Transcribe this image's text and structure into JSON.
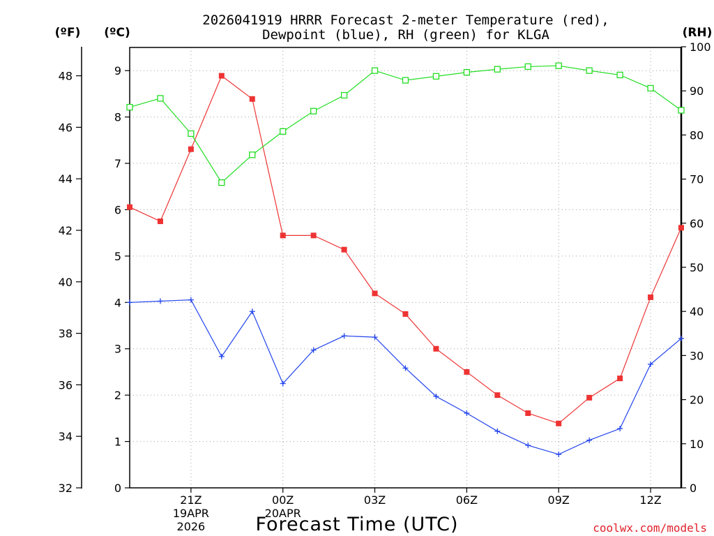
{
  "chart_data": {
    "type": "line",
    "title_line1": "2026041919 HRRR Forecast 2-meter Temperature (red),",
    "title_line2": "Dewpoint (blue), RH (green) for KLGA",
    "unit_left_f": "(ºF)",
    "unit_left_c": "(ºC)",
    "unit_right": "(RH)",
    "xlabel": "Forecast Time (UTC)",
    "watermark": "coolwx.com/models",
    "f_ticks": [
      "48",
      "46",
      "44",
      "42",
      "40",
      "38",
      "36",
      "34",
      "32"
    ],
    "c_ticks": [
      "9",
      "8",
      "7",
      "6",
      "5",
      "4",
      "3",
      "2",
      "1",
      "0"
    ],
    "rh_ticks": [
      "100",
      "90",
      "80",
      "70",
      "60",
      "50",
      "40",
      "30",
      "20",
      "10",
      "0"
    ],
    "f_range": [
      31.4,
      49.5
    ],
    "c_range": [
      0,
      9.5
    ],
    "rh_range": [
      0,
      100
    ],
    "x_hours": [
      19,
      20,
      21,
      22,
      23,
      24,
      25,
      26,
      27,
      28,
      29,
      30,
      31,
      32,
      33,
      34,
      35,
      36,
      37
    ],
    "x_range": [
      19,
      37
    ],
    "x_ticks": [
      {
        "hour": 21,
        "label": "21Z",
        "date1": "19APR",
        "date2": "2026"
      },
      {
        "hour": 24,
        "label": "00Z",
        "date1": "20APR",
        "date2": ""
      },
      {
        "hour": 27,
        "label": "03Z",
        "date1": "",
        "date2": ""
      },
      {
        "hour": 30,
        "label": "06Z",
        "date1": "",
        "date2": ""
      },
      {
        "hour": 33,
        "label": "09Z",
        "date1": "",
        "date2": ""
      },
      {
        "hour": 36,
        "label": "12Z",
        "date1": "",
        "date2": ""
      }
    ],
    "series": [
      {
        "name": "Temperature",
        "color": "#ee3333",
        "marker": "filled-square",
        "axis": "F",
        "values": [
          42.9,
          42.35,
          45.15,
          48.0,
          47.1,
          41.8,
          41.8,
          41.25,
          39.55,
          38.75,
          37.4,
          36.5,
          35.6,
          34.9,
          34.5,
          35.5,
          36.25,
          39.4,
          42.1
        ]
      },
      {
        "name": "Dewpoint",
        "color": "#2244ee",
        "marker": "plus",
        "axis": "F",
        "values": [
          39.2,
          39.25,
          39.3,
          37.1,
          38.85,
          36.05,
          37.35,
          37.9,
          37.85,
          36.65,
          35.55,
          34.9,
          34.2,
          33.65,
          33.3,
          33.85,
          34.3,
          36.8,
          37.8
        ]
      },
      {
        "name": "RH",
        "color": "#22dd22",
        "marker": "open-square",
        "axis": "RH",
        "values": [
          86.3,
          88.3,
          80.3,
          69.2,
          75.5,
          80.8,
          85.4,
          89.0,
          94.6,
          92.4,
          93.3,
          94.2,
          94.9,
          95.5,
          95.7,
          94.6,
          93.6,
          90.6,
          85.6
        ]
      }
    ]
  }
}
